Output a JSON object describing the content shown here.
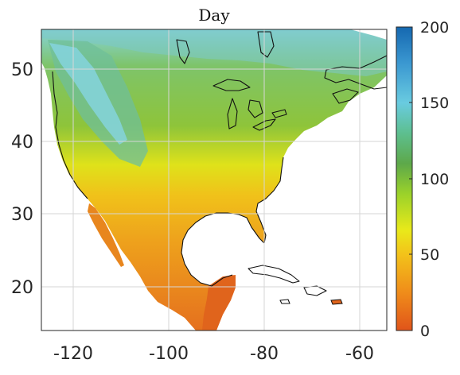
{
  "title": "Day",
  "x_ticks": [
    "-120",
    "-100",
    "-80",
    "-60"
  ],
  "y_ticks": [
    "50",
    "40",
    "30",
    "20"
  ],
  "colorbar": {
    "labels": [
      "200",
      "150",
      "100",
      "50",
      "0"
    ],
    "range": [
      0,
      200
    ],
    "colors": [
      "#e0541a",
      "#ef8a1a",
      "#f3c21a",
      "#e9e91a",
      "#9bd22a",
      "#56a84a",
      "#5dbf8f",
      "#5fc6d8",
      "#3b98d1",
      "#1568b0"
    ]
  },
  "map_colors": {
    "south": "#e87a22",
    "mid": "#f3c21a",
    "north": "#7cbe3a",
    "high": "#8ed6e0",
    "ocean": "#ffffff"
  }
}
